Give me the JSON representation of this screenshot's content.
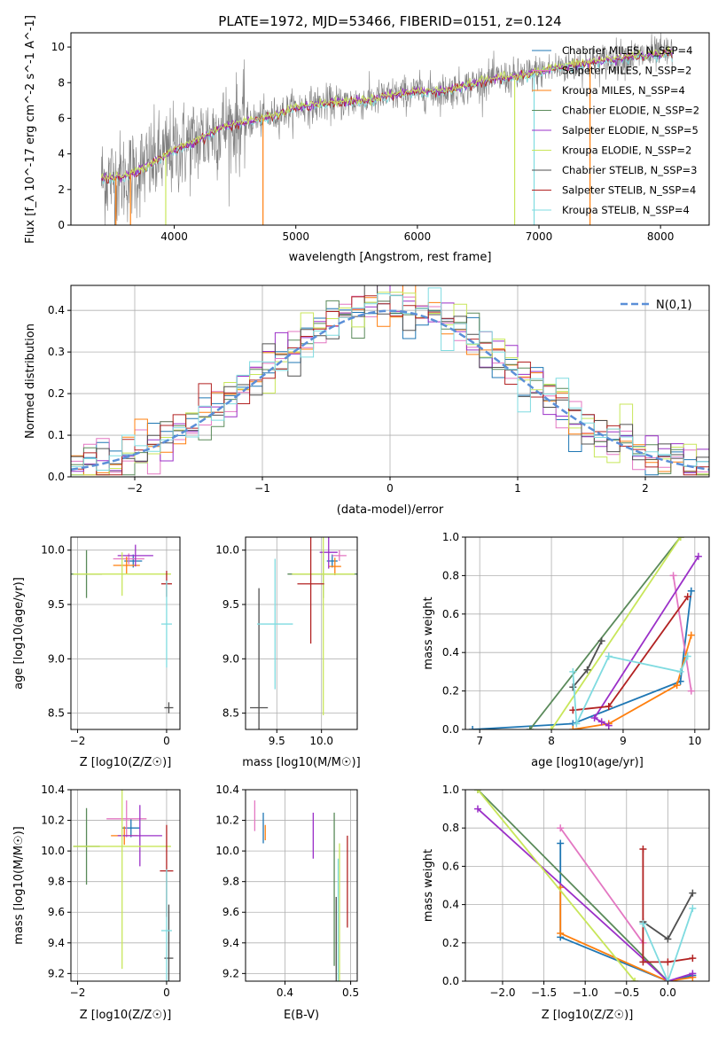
{
  "figure_title": "PLATE=1972, MJD=53466, FIBERID=0151, z=0.124",
  "colors": {
    "data": "#808080",
    "chabrier_miles": "#1f77b4",
    "salpeter_miles": "#e377c2",
    "kroupa_miles": "#ff7f0e",
    "chabrier_elodie": "#5a8a5a",
    "salpeter_elodie": "#9b30c8",
    "kroupa_elodie": "#c8e65a",
    "chabrier_stelib": "#505050",
    "salpeter_stelib": "#b22222",
    "kroupa_stelib": "#7fdbe0",
    "gauss": "#5b8fd8"
  },
  "chart_data": [
    {
      "type": "line",
      "id": "spectrum",
      "xlabel": "wavelength [Angstrom, rest frame]",
      "ylabel": "Flux [f_λ 10^-17 erg cm^-2 s^-1 A^-1]",
      "xlim": [
        3150,
        8400
      ],
      "ylim": [
        0,
        10.8
      ],
      "xticks": [
        4000,
        5000,
        6000,
        7000,
        8000
      ],
      "yticks": [
        0,
        2,
        4,
        6,
        8,
        10
      ],
      "legend_position": "upper-right",
      "series": [
        {
          "name": "Chabrier MILES, N_SSP=4",
          "key": "chabrier_miles"
        },
        {
          "name": "Salpeter MILES, N_SSP=2",
          "key": "salpeter_miles"
        },
        {
          "name": "Kroupa MILES, N_SSP=4",
          "key": "kroupa_miles"
        },
        {
          "name": "Chabrier ELODIE, N_SSP=2",
          "key": "chabrier_elodie"
        },
        {
          "name": "Salpeter ELODIE, N_SSP=5",
          "key": "salpeter_elodie"
        },
        {
          "name": "Kroupa ELODIE, N_SSP=2",
          "key": "kroupa_elodie"
        },
        {
          "name": "Chabrier STELIB, N_SSP=3",
          "key": "chabrier_stelib"
        },
        {
          "name": "Salpeter STELIB, N_SSP=4",
          "key": "salpeter_stelib"
        },
        {
          "name": "Kroupa STELIB, N_SSP=4",
          "key": "kroupa_stelib"
        }
      ],
      "continuum": [
        [
          3400,
          2.6
        ],
        [
          3600,
          2.7
        ],
        [
          3800,
          3.4
        ],
        [
          4000,
          4.2
        ],
        [
          4200,
          4.8
        ],
        [
          4400,
          5.5
        ],
        [
          4600,
          5.8
        ],
        [
          4800,
          6.1
        ],
        [
          5000,
          6.6
        ],
        [
          5200,
          6.8
        ],
        [
          5400,
          6.9
        ],
        [
          5600,
          7.0
        ],
        [
          5800,
          7.3
        ],
        [
          6000,
          7.5
        ],
        [
          6200,
          7.5
        ],
        [
          6400,
          7.8
        ],
        [
          6600,
          8.2
        ],
        [
          6800,
          8.3
        ],
        [
          7000,
          8.6
        ],
        [
          7200,
          8.9
        ],
        [
          7400,
          9.1
        ],
        [
          7600,
          9.3
        ],
        [
          7800,
          9.5
        ],
        [
          8000,
          9.6
        ],
        [
          8100,
          9.7
        ]
      ]
    },
    {
      "type": "histogram",
      "id": "residuals",
      "xlabel": "(data-model)/error",
      "ylabel": "Normed distribution",
      "xlim": [
        -2.5,
        2.5
      ],
      "ylim": [
        0,
        0.46
      ],
      "xticks": [
        -2,
        -1,
        0,
        1,
        2
      ],
      "yticks": [
        0.0,
        0.1,
        0.2,
        0.3,
        0.4
      ],
      "legend": "N(0,1)",
      "legend_position": "upper-right"
    },
    {
      "type": "scatter",
      "id": "age_vs_Z",
      "xlabel": "Z [log10(Z/Z☉)]",
      "ylabel": "age  [log10(age/yr)]",
      "xlim": [
        -2.15,
        0.3
      ],
      "ylim": [
        8.35,
        10.12
      ],
      "xticks": [
        -2,
        0
      ],
      "yticks": [
        8.5,
        9.0,
        9.5,
        10.0
      ],
      "points": [
        {
          "key": "chabrier_miles",
          "x": -0.75,
          "y": 9.9,
          "xerr": 0.2,
          "yerr": 0.06
        },
        {
          "key": "salpeter_miles",
          "x": -0.85,
          "y": 9.92,
          "xerr": 0.35,
          "yerr": 0.05
        },
        {
          "key": "kroupa_miles",
          "x": -0.9,
          "y": 9.86,
          "xerr": 0.3,
          "yerr": 0.08
        },
        {
          "key": "chabrier_elodie",
          "x": -1.8,
          "y": 9.78,
          "xerr": 0.35,
          "yerr": 0.22
        },
        {
          "key": "salpeter_elodie",
          "x": -0.7,
          "y": 9.95,
          "xerr": 0.4,
          "yerr": 0.1
        },
        {
          "key": "kroupa_elodie",
          "x": -1.0,
          "y": 9.78,
          "xerr": 1.1,
          "yerr": 0.2
        },
        {
          "key": "chabrier_stelib",
          "x": 0.05,
          "y": 8.55,
          "xerr": 0.1,
          "yerr": 0.05
        },
        {
          "key": "salpeter_stelib",
          "x": 0.0,
          "y": 9.69,
          "xerr": 0.12,
          "yerr": 0.12
        },
        {
          "key": "kroupa_stelib",
          "x": 0.0,
          "y": 9.32,
          "xerr": 0.12,
          "yerr": 0.4
        }
      ]
    },
    {
      "type": "scatter",
      "id": "age_vs_mass",
      "xlabel": "mass [log10(M/M☉)]",
      "xlim": [
        9.15,
        10.4
      ],
      "ylim": [
        8.35,
        10.12
      ],
      "xticks": [
        9.5,
        10.0
      ],
      "yticks": [
        8.5,
        9.0,
        9.5,
        10.0
      ],
      "points": [
        {
          "key": "chabrier_miles",
          "x": 10.12,
          "y": 9.9,
          "xerr": 0.06,
          "yerr": 0.06
        },
        {
          "key": "salpeter_miles",
          "x": 10.2,
          "y": 9.95,
          "xerr": 0.08,
          "yerr": 0.05
        },
        {
          "key": "kroupa_miles",
          "x": 10.15,
          "y": 9.85,
          "xerr": 0.07,
          "yerr": 0.08
        },
        {
          "key": "chabrier_elodie",
          "x": 10.02,
          "y": 9.78,
          "xerr": 0.4,
          "yerr": 0.22
        },
        {
          "key": "salpeter_elodie",
          "x": 10.08,
          "y": 9.98,
          "xerr": 0.1,
          "yerr": 0.15
        },
        {
          "key": "kroupa_elodie",
          "x": 10.02,
          "y": 9.78,
          "xerr": 0.35,
          "yerr": 1.3
        },
        {
          "key": "chabrier_stelib",
          "x": 9.3,
          "y": 8.55,
          "xerr": 0.1,
          "yerr": 1.1
        },
        {
          "key": "salpeter_stelib",
          "x": 9.88,
          "y": 9.69,
          "xerr": 0.15,
          "yerr": 0.55
        },
        {
          "key": "kroupa_stelib",
          "x": 9.48,
          "y": 9.32,
          "xerr": 0.2,
          "yerr": 0.6
        }
      ]
    },
    {
      "type": "line",
      "id": "mass_weight_vs_age",
      "xlabel": "age  [log10(age/yr)]",
      "ylabel": "mass weight",
      "xlim": [
        6.8,
        10.2
      ],
      "ylim": [
        0,
        1.0
      ],
      "xticks": [
        7,
        8,
        9,
        10
      ],
      "yticks": [
        0.0,
        0.2,
        0.4,
        0.6,
        0.8,
        1.0
      ],
      "series": [
        {
          "key": "chabrier_miles",
          "x": [
            6.9,
            8.3,
            9.8,
            9.95
          ],
          "y": [
            0.0,
            0.03,
            0.25,
            0.72
          ]
        },
        {
          "key": "salpeter_miles",
          "x": [
            9.7,
            9.95
          ],
          "y": [
            0.8,
            0.2
          ]
        },
        {
          "key": "kroupa_miles",
          "x": [
            8.3,
            8.8,
            9.75,
            9.95
          ],
          "y": [
            0.0,
            0.03,
            0.23,
            0.49
          ]
        },
        {
          "key": "chabrier_elodie",
          "x": [
            7.7,
            9.8
          ],
          "y": [
            0.0,
            1.0
          ]
        },
        {
          "key": "salpeter_elodie",
          "x": [
            8.7,
            8.8,
            8.6,
            10.05
          ],
          "y": [
            0.04,
            0.02,
            0.06,
            0.9
          ]
        },
        {
          "key": "kroupa_elodie",
          "x": [
            8.0,
            9.8
          ],
          "y": [
            0.0,
            1.0
          ]
        },
        {
          "key": "chabrier_stelib",
          "x": [
            8.3,
            8.5,
            8.7
          ],
          "y": [
            0.22,
            0.31,
            0.46
          ]
        },
        {
          "key": "salpeter_stelib",
          "x": [
            8.3,
            8.8,
            9.9
          ],
          "y": [
            0.1,
            0.12,
            0.69
          ]
        },
        {
          "key": "kroupa_stelib",
          "x": [
            8.3,
            8.35,
            8.8,
            9.8,
            9.9
          ],
          "y": [
            0.3,
            0.03,
            0.38,
            0.3,
            0.38
          ]
        }
      ]
    },
    {
      "type": "scatter",
      "id": "mass_vs_Z",
      "xlabel": "Z [log10(Z/Z☉)]",
      "ylabel": "mass [log10(M/M☉)]",
      "xlim": [
        -2.15,
        0.3
      ],
      "ylim": [
        9.15,
        10.4
      ],
      "xticks": [
        -2,
        0
      ],
      "yticks": [
        9.2,
        9.4,
        9.6,
        9.8,
        10.0,
        10.2,
        10.4
      ],
      "points": [
        {
          "key": "chabrier_miles",
          "x": -0.8,
          "y": 10.15,
          "xerr": 0.2,
          "yerr": 0.06
        },
        {
          "key": "salpeter_miles",
          "x": -0.9,
          "y": 10.21,
          "xerr": 0.45,
          "yerr": 0.12
        },
        {
          "key": "kroupa_miles",
          "x": -0.95,
          "y": 10.1,
          "xerr": 0.3,
          "yerr": 0.06
        },
        {
          "key": "chabrier_elodie",
          "x": -1.8,
          "y": 10.03,
          "xerr": 0.3,
          "yerr": 0.25
        },
        {
          "key": "salpeter_elodie",
          "x": -0.6,
          "y": 10.1,
          "xerr": 0.5,
          "yerr": 0.2
        },
        {
          "key": "kroupa_elodie",
          "x": -1.0,
          "y": 10.03,
          "xerr": 1.1,
          "yerr": 0.8
        },
        {
          "key": "chabrier_stelib",
          "x": 0.05,
          "y": 9.3,
          "xerr": 0.1,
          "yerr": 0.35
        },
        {
          "key": "salpeter_stelib",
          "x": 0.0,
          "y": 9.87,
          "xerr": 0.15,
          "yerr": 0.3
        },
        {
          "key": "kroupa_stelib",
          "x": 0.0,
          "y": 9.48,
          "xerr": 0.12,
          "yerr": 0.4
        }
      ]
    },
    {
      "type": "scatter",
      "id": "mass_vs_ebv",
      "xlabel": "E(B-V)",
      "xlim": [
        0.34,
        0.51
      ],
      "ylim": [
        9.15,
        10.4
      ],
      "xticks": [
        0.4,
        0.5
      ],
      "yticks": [
        9.2,
        9.4,
        9.6,
        9.8,
        10.0,
        10.2,
        10.4
      ],
      "points": [
        {
          "key": "chabrier_miles",
          "x": 0.367,
          "y": 10.15,
          "xerr": 0.0,
          "yerr": 0.1
        },
        {
          "key": "salpeter_miles",
          "x": 0.354,
          "y": 10.23,
          "xerr": 0.0,
          "yerr": 0.1
        },
        {
          "key": "kroupa_miles",
          "x": 0.37,
          "y": 10.12,
          "xerr": 0.0,
          "yerr": 0.05
        },
        {
          "key": "chabrier_elodie",
          "x": 0.475,
          "y": 9.75,
          "xerr": 0.0,
          "yerr": 0.5
        },
        {
          "key": "salpeter_elodie",
          "x": 0.443,
          "y": 10.1,
          "xerr": 0.0,
          "yerr": 0.15
        },
        {
          "key": "kroupa_elodie",
          "x": 0.483,
          "y": 9.55,
          "xerr": 0.0,
          "yerr": 0.5
        },
        {
          "key": "chabrier_stelib",
          "x": 0.478,
          "y": 9.4,
          "xerr": 0.0,
          "yerr": 0.3
        },
        {
          "key": "salpeter_stelib",
          "x": 0.495,
          "y": 9.8,
          "xerr": 0.0,
          "yerr": 0.3
        },
        {
          "key": "kroupa_stelib",
          "x": 0.481,
          "y": 9.55,
          "xerr": 0.0,
          "yerr": 0.4
        }
      ]
    },
    {
      "type": "line",
      "id": "mass_weight_vs_Z",
      "xlabel": "Z [log10(Z/Z☉)]",
      "ylabel": "mass weight",
      "xlim": [
        -2.45,
        0.5
      ],
      "ylim": [
        0,
        1.0
      ],
      "xticks": [
        -2.0,
        -1.5,
        -1.0,
        -0.5,
        0.0
      ],
      "yticks": [
        0.0,
        0.2,
        0.4,
        0.6,
        0.8,
        1.0
      ],
      "series": [
        {
          "key": "chabrier_miles",
          "x": [
            -1.3,
            -1.3,
            0.0,
            0.3
          ],
          "y": [
            0.72,
            0.23,
            0.0,
            0.03
          ]
        },
        {
          "key": "salpeter_miles",
          "x": [
            -1.3,
            -0.3
          ],
          "y": [
            0.8,
            0.2
          ]
        },
        {
          "key": "kroupa_miles",
          "x": [
            -1.3,
            -1.3,
            0.0,
            0.3
          ],
          "y": [
            0.49,
            0.25,
            0.0,
            0.02
          ]
        },
        {
          "key": "chabrier_elodie",
          "x": [
            -2.3,
            0.0
          ],
          "y": [
            1.0,
            0.0
          ]
        },
        {
          "key": "salpeter_elodie",
          "x": [
            -2.3,
            0.0,
            0.3
          ],
          "y": [
            0.9,
            0.0,
            0.04
          ]
        },
        {
          "key": "kroupa_elodie",
          "x": [
            -2.3,
            -0.4
          ],
          "y": [
            1.0,
            0.0
          ]
        },
        {
          "key": "chabrier_stelib",
          "x": [
            -0.3,
            0.0,
            0.3
          ],
          "y": [
            0.31,
            0.22,
            0.46
          ]
        },
        {
          "key": "salpeter_stelib",
          "x": [
            -0.3,
            -0.3,
            0.0,
            0.3
          ],
          "y": [
            0.69,
            0.1,
            0.1,
            0.12
          ]
        },
        {
          "key": "kroupa_stelib",
          "x": [
            -0.3,
            0.0,
            0.3
          ],
          "y": [
            0.3,
            0.0,
            0.38
          ]
        }
      ]
    }
  ]
}
